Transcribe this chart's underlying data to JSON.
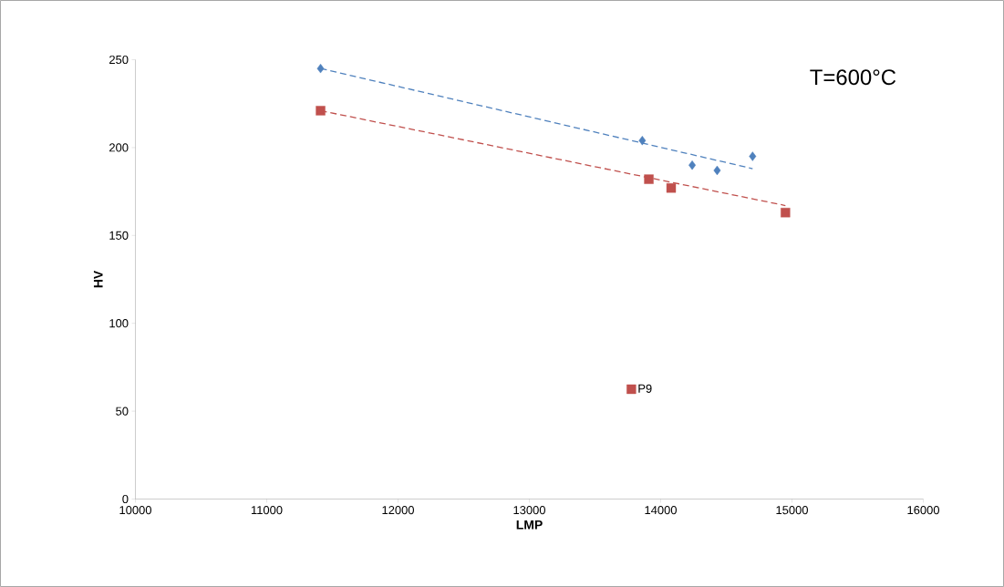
{
  "chart_data": {
    "type": "scatter",
    "xlabel": "LMP",
    "ylabel": "HV",
    "annotations": [
      "T=600°C"
    ],
    "xlim": [
      10000,
      16000
    ],
    "xticks": [
      10000,
      11000,
      12000,
      13000,
      14000,
      15000,
      16000
    ],
    "ylim": [
      0,
      250
    ],
    "yticks": [
      0,
      50,
      100,
      150,
      200,
      250
    ],
    "grid": false,
    "legend": "right",
    "series": [
      {
        "name": "P9",
        "color": "#c0504d",
        "marker": "square",
        "x": [
          11410,
          13910,
          14080,
          14950
        ],
        "values": [
          221,
          182,
          177,
          163
        ]
      },
      {
        "color": "#4f81bd",
        "marker": "diamond",
        "x": [
          11410,
          13860,
          14240,
          14430,
          14700
        ],
        "values": [
          245,
          204,
          190,
          187,
          195
        ]
      },
      {
        "type": "line",
        "color": "#4f81bd",
        "marker": "none",
        "line_style": "dashed",
        "x": [
          11410,
          14700
        ],
        "values": [
          245,
          188
        ]
      },
      {
        "type": "line",
        "color": "#c0504d",
        "marker": "none",
        "line_style": "dashed",
        "x": [
          11410,
          14950
        ],
        "values": [
          221,
          167
        ]
      }
    ]
  }
}
